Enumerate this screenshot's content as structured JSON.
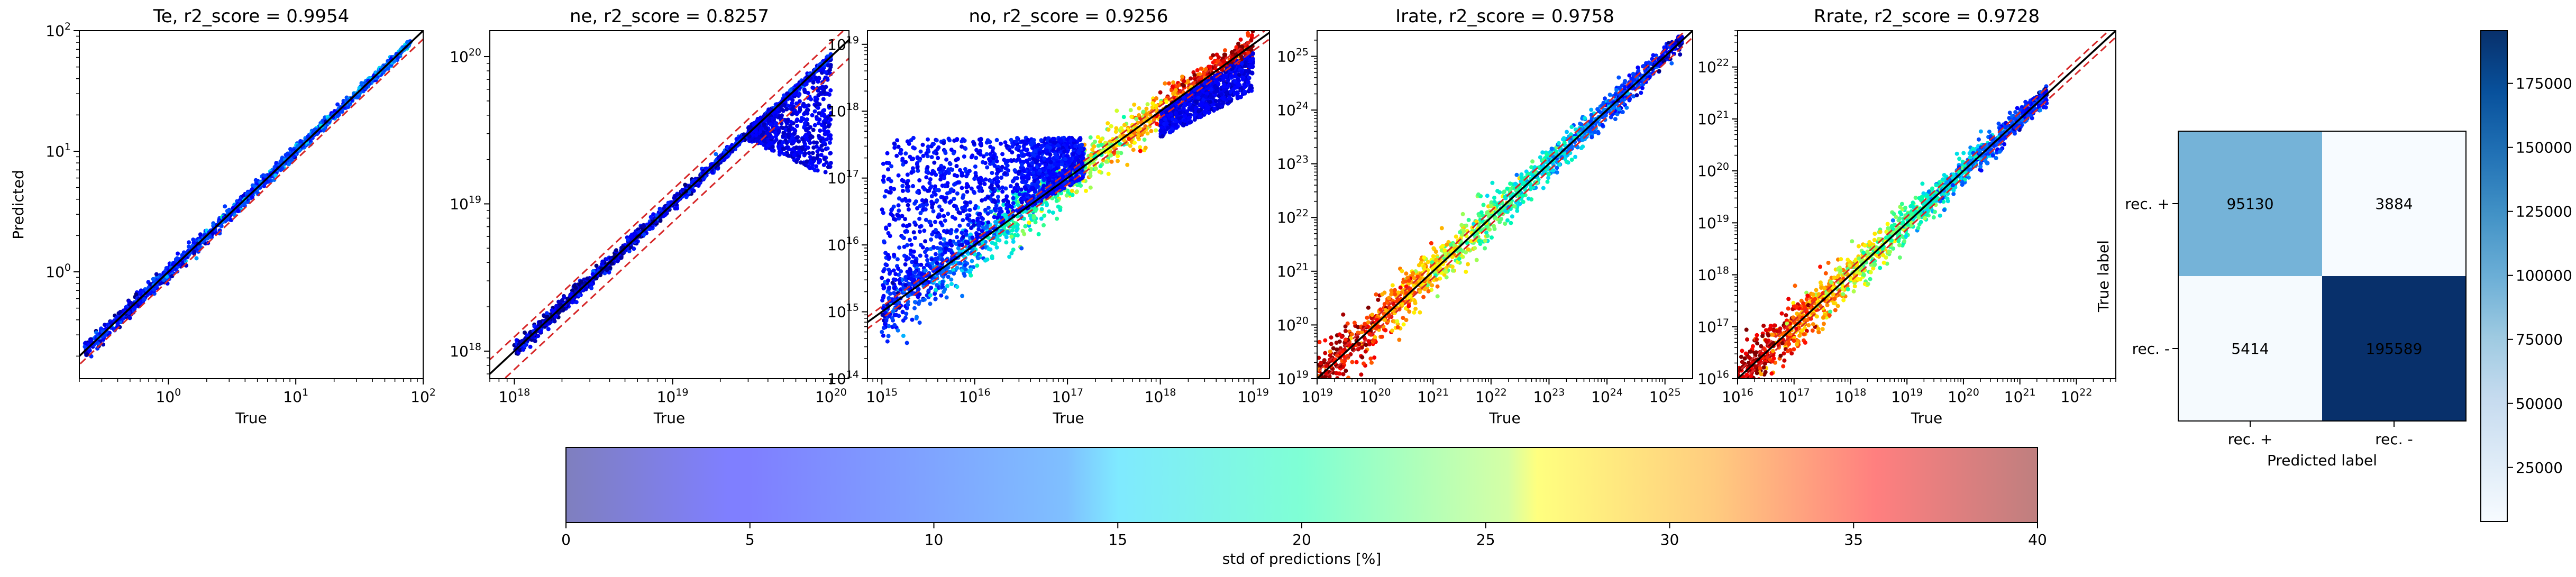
{
  "chart_data": [
    {
      "type": "scatter",
      "title": "Te, r2_score = 0.9954",
      "xlabel": "True",
      "ylabel": "Predicted",
      "xscale": "log",
      "yscale": "log",
      "xlim": [
        0.2,
        100
      ],
      "ylim": [
        0.13,
        100
      ],
      "xticks": [
        1,
        10,
        100
      ],
      "xtick_labels": [
        {
          "base": "10",
          "exp": "0"
        },
        {
          "base": "10",
          "exp": "1"
        },
        {
          "base": "10",
          "exp": "2"
        }
      ],
      "yticks": [
        1,
        10,
        100
      ],
      "ytick_labels": [
        {
          "base": "10",
          "exp": "0"
        },
        {
          "base": "10",
          "exp": "1"
        },
        {
          "base": "10",
          "exp": "2"
        }
      ],
      "identity_line": {
        "color": "#000000",
        "style": "solid"
      },
      "bound_lines": {
        "color": "#d62728",
        "style": "dashed",
        "factor_low": 0.85,
        "factor_high": 1.0
      },
      "points": {
        "x_range": [
          0.22,
          80
        ],
        "spread_decades": 0.05,
        "std_range": [
          5,
          12
        ],
        "bands": []
      }
    },
    {
      "type": "scatter",
      "title": "ne, r2_score = 0.8257",
      "xlabel": "True",
      "ylabel": "",
      "xscale": "log",
      "yscale": "log",
      "xlim": [
        7e+17,
        1.3e+20
      ],
      "ylim": [
        6.5e+17,
        1.5e+20
      ],
      "xticks": [
        1e+18,
        1e+19,
        1e+20
      ],
      "xtick_labels": [
        {
          "base": "10",
          "exp": "18"
        },
        {
          "base": "10",
          "exp": "19"
        },
        {
          "base": "10",
          "exp": "20"
        }
      ],
      "yticks": [
        1e+18,
        1e+19,
        1e+20
      ],
      "ytick_labels": [
        {
          "base": "10",
          "exp": "18"
        },
        {
          "base": "10",
          "exp": "19"
        },
        {
          "base": "10",
          "exp": "20"
        }
      ],
      "identity_line": {
        "color": "#000000",
        "style": "solid"
      },
      "bound_lines": {
        "color": "#d62728",
        "style": "dashed",
        "factor_low": 0.75,
        "factor_high": 1.25
      },
      "points": {
        "x_range": [
          1e+18,
          1e+20
        ],
        "spread_decades": 0.04,
        "std_range": [
          2,
          7
        ],
        "bands": [
          {
            "x_from": 3e+19,
            "x_to": 1e+20,
            "y_low_from": 2.7e+19,
            "y_low_to": 1.5e+19,
            "y_high_from": 3.3e+19,
            "y_high_to": 1e+20,
            "std": [
              2,
              6
            ]
          }
        ]
      }
    },
    {
      "type": "scatter",
      "title": "no, r2_score = 0.9256",
      "xlabel": "True",
      "ylabel": "",
      "xscale": "log",
      "yscale": "log",
      "xlim": [
        700000000000000.0,
        1.5e+19
      ],
      "ylim": [
        100000000000000.0,
        1.6e+19
      ],
      "xticks": [
        1000000000000000.0,
        1e+16,
        1e+17,
        1e+18,
        1e+19
      ],
      "xtick_labels": [
        {
          "base": "10",
          "exp": "15"
        },
        {
          "base": "10",
          "exp": "16"
        },
        {
          "base": "10",
          "exp": "17"
        },
        {
          "base": "10",
          "exp": "18"
        },
        {
          "base": "10",
          "exp": "19"
        }
      ],
      "yticks": [
        100000000000000.0,
        1000000000000000.0,
        1e+16,
        1e+17,
        1e+18,
        1e+19
      ],
      "ytick_labels": [
        {
          "base": "10",
          "exp": "14"
        },
        {
          "base": "10",
          "exp": "15"
        },
        {
          "base": "10",
          "exp": "16"
        },
        {
          "base": "10",
          "exp": "17"
        },
        {
          "base": "10",
          "exp": "18"
        },
        {
          "base": "10",
          "exp": "19"
        }
      ],
      "identity_line": {
        "color": "#000000",
        "style": "solid"
      },
      "bound_lines": {
        "color": "#d62728",
        "style": "dashed",
        "factor_low": 0.8,
        "factor_high": 1.2
      },
      "points": {
        "x_range": [
          1000000000000000.0,
          1e+19
        ],
        "spread_decades": 0.35,
        "std_range": [
          6,
          40
        ],
        "bands": [
          {
            "x_from": 1000000000000000.0,
            "x_to": 3e+16,
            "y_low_from": 1000000000000000.0,
            "y_low_to": 3e+16,
            "y_high_from": 4e+17,
            "y_high_to": 4e+17,
            "std": [
              3,
              8
            ]
          },
          {
            "x_from": 3e+16,
            "x_to": 1.5e+17,
            "y_low_from": 3e+16,
            "y_low_to": 1e+17,
            "y_high_from": 4e+17,
            "y_high_to": 4e+17,
            "std": [
              3,
              8
            ]
          },
          {
            "x_from": 1e+18,
            "x_to": 1e+19,
            "y_low_from": 4e+17,
            "y_low_to": 2e+18,
            "y_high_from": 1e+18,
            "y_high_to": 8e+18,
            "std": [
              2,
              6
            ]
          }
        ]
      }
    },
    {
      "type": "scatter",
      "title": "Irate, r2_score = 0.9758",
      "xlabel": "True",
      "ylabel": "",
      "xscale": "log",
      "yscale": "log",
      "xlim": [
        1e+19,
        3e+25
      ],
      "ylim": [
        1e+19,
        3e+25
      ],
      "xticks": [
        1e+19,
        1e+20,
        1e+21,
        1e+22,
        1e+23,
        1e+24,
        1e+25
      ],
      "xtick_labels": [
        {
          "base": "10",
          "exp": "19"
        },
        {
          "base": "10",
          "exp": "20"
        },
        {
          "base": "10",
          "exp": "21"
        },
        {
          "base": "10",
          "exp": "22"
        },
        {
          "base": "10",
          "exp": "23"
        },
        {
          "base": "10",
          "exp": "24"
        },
        {
          "base": "10",
          "exp": "25"
        }
      ],
      "yticks": [
        1e+19,
        1e+20,
        1e+21,
        1e+22,
        1e+23,
        1e+24,
        1e+25
      ],
      "ytick_labels": [
        {
          "base": "10",
          "exp": "19"
        },
        {
          "base": "10",
          "exp": "20"
        },
        {
          "base": "10",
          "exp": "21"
        },
        {
          "base": "10",
          "exp": "22"
        },
        {
          "base": "10",
          "exp": "23"
        },
        {
          "base": "10",
          "exp": "24"
        },
        {
          "base": "10",
          "exp": "25"
        }
      ],
      "identity_line": {
        "color": "#000000",
        "style": "solid"
      },
      "bound_lines": {
        "color": "#d62728",
        "style": "dashed",
        "factor_low": 0.75,
        "factor_high": 1.33
      },
      "points": {
        "x_range": [
          1e+19,
          2e+25
        ],
        "spread_decades": 0.3,
        "std_range": [
          40,
          3
        ],
        "bands": []
      }
    },
    {
      "type": "scatter",
      "title": "Rrate, r2_score = 0.9728",
      "xlabel": "True",
      "ylabel": "",
      "xscale": "log",
      "yscale": "log",
      "xlim": [
        1e+16,
        5e+22
      ],
      "ylim": [
        1e+16,
        5e+22
      ],
      "xticks": [
        1e+16,
        1e+17,
        1e+18,
        1e+19,
        1e+20,
        1e+21,
        1e+22
      ],
      "xtick_labels": [
        {
          "base": "10",
          "exp": "16"
        },
        {
          "base": "10",
          "exp": "17"
        },
        {
          "base": "10",
          "exp": "18"
        },
        {
          "base": "10",
          "exp": "19"
        },
        {
          "base": "10",
          "exp": "20"
        },
        {
          "base": "10",
          "exp": "21"
        },
        {
          "base": "10",
          "exp": "22"
        }
      ],
      "yticks": [
        1e+16,
        1e+17,
        1e+18,
        1e+19,
        1e+20,
        1e+21,
        1e+22
      ],
      "ytick_labels": [
        {
          "base": "10",
          "exp": "16"
        },
        {
          "base": "10",
          "exp": "17"
        },
        {
          "base": "10",
          "exp": "18"
        },
        {
          "base": "10",
          "exp": "19"
        },
        {
          "base": "10",
          "exp": "20"
        },
        {
          "base": "10",
          "exp": "21"
        },
        {
          "base": "10",
          "exp": "22"
        }
      ],
      "identity_line": {
        "color": "#000000",
        "style": "solid"
      },
      "bound_lines": {
        "color": "#d62728",
        "style": "dashed",
        "factor_low": 0.75,
        "factor_high": 1.33
      },
      "points": {
        "x_range": [
          1e+16,
          3e+21
        ],
        "spread_decades": 0.3,
        "std_range": [
          40,
          5
        ],
        "bands": []
      }
    },
    {
      "type": "heatmap",
      "title": "",
      "xlabel": "Predicted label",
      "ylabel": "True label",
      "x_categories": [
        "rec. +",
        "rec. -"
      ],
      "y_categories": [
        "rec. +",
        "rec. -"
      ],
      "values": [
        [
          95130,
          3884
        ],
        [
          5414,
          195589
        ]
      ],
      "value_labels": [
        [
          "95130",
          "3884"
        ],
        [
          "5414",
          "195589"
        ]
      ],
      "colormap": "Blues",
      "vmin": 3884,
      "vmax": 195589,
      "colorbar_ticks": [
        25000,
        50000,
        75000,
        100000,
        125000,
        150000,
        175000
      ],
      "colorbar_tick_labels": [
        "25000",
        "50000",
        "75000",
        "100000",
        "125000",
        "150000",
        "175000"
      ]
    }
  ],
  "colorbar": {
    "label": "std of predictions [%]",
    "colormap": "jet",
    "alpha": 0.5,
    "min": 0,
    "max": 40,
    "ticks": [
      0,
      5,
      10,
      15,
      20,
      25,
      30,
      35,
      40
    ],
    "tick_labels": [
      "0",
      "5",
      "10",
      "15",
      "20",
      "25",
      "30",
      "35",
      "40"
    ]
  }
}
